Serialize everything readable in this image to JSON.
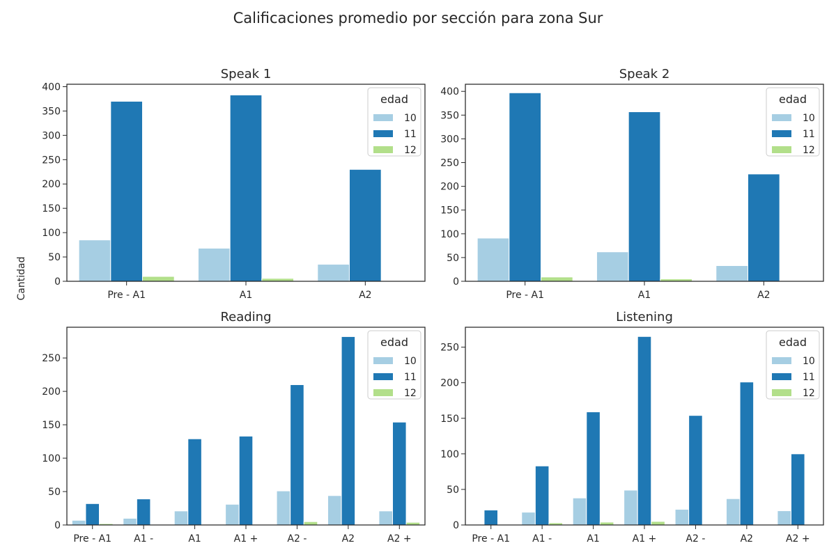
{
  "figure": {
    "title": "Calificaciones promedio por sección para zona Sur",
    "ylabel": "Cantidad"
  },
  "colors": {
    "10": "#a6cee3",
    "11": "#1f78b4",
    "12": "#b2df8a"
  },
  "chart_data": [
    {
      "type": "bar",
      "title": "Speak 1",
      "xlabel": "",
      "ylabel": "Cantidad",
      "categories": [
        "Pre - A1",
        "A1",
        "A2"
      ],
      "series": [
        {
          "name": "10",
          "values": [
            85,
            68,
            35
          ]
        },
        {
          "name": "11",
          "values": [
            370,
            383,
            230
          ]
        },
        {
          "name": "12",
          "values": [
            10,
            6,
            0
          ]
        }
      ],
      "ylim": [
        0,
        405
      ],
      "yticks": [
        0,
        50,
        100,
        150,
        200,
        250,
        300,
        350,
        400
      ],
      "legend": {
        "title": "edad",
        "placement": "top-right",
        "entries": [
          "10",
          "11",
          "12"
        ]
      }
    },
    {
      "type": "bar",
      "title": "Speak 2",
      "xlabel": "",
      "ylabel": "",
      "categories": [
        "Pre - A1",
        "A1",
        "A2"
      ],
      "series": [
        {
          "name": "10",
          "values": [
            91,
            62,
            33
          ]
        },
        {
          "name": "11",
          "values": [
            397,
            357,
            226
          ]
        },
        {
          "name": "12",
          "values": [
            9,
            5,
            0
          ]
        }
      ],
      "ylim": [
        0,
        415
      ],
      "yticks": [
        0,
        50,
        100,
        150,
        200,
        250,
        300,
        350,
        400
      ],
      "legend": {
        "title": "edad",
        "placement": "top-right",
        "entries": [
          "10",
          "11",
          "12"
        ]
      }
    },
    {
      "type": "bar",
      "title": "Reading",
      "xlabel": "",
      "ylabel": "",
      "categories": [
        "Pre - A1",
        "A1 -",
        "A1",
        "A1 +",
        "A2 -",
        "A2",
        "A2 +"
      ],
      "series": [
        {
          "name": "10",
          "values": [
            7,
            10,
            21,
            31,
            51,
            44,
            21
          ]
        },
        {
          "name": "11",
          "values": [
            32,
            39,
            129,
            133,
            210,
            282,
            154
          ]
        },
        {
          "name": "12",
          "values": [
            2,
            0,
            0,
            0,
            5,
            0,
            4
          ]
        }
      ],
      "ylim": [
        0,
        296
      ],
      "yticks": [
        0,
        50,
        100,
        150,
        200,
        250
      ],
      "legend": {
        "title": "edad",
        "placement": "top-right",
        "entries": [
          "10",
          "11",
          "12"
        ]
      }
    },
    {
      "type": "bar",
      "title": "Listening",
      "xlabel": "",
      "ylabel": "",
      "categories": [
        "Pre - A1",
        "A1 -",
        "A1",
        "A1 +",
        "A2 -",
        "A2",
        "A2 +"
      ],
      "series": [
        {
          "name": "10",
          "values": [
            0,
            18,
            38,
            49,
            22,
            37,
            20
          ]
        },
        {
          "name": "11",
          "values": [
            21,
            83,
            159,
            265,
            154,
            201,
            100
          ]
        },
        {
          "name": "12",
          "values": [
            0,
            3,
            4,
            5,
            0,
            0,
            0
          ]
        }
      ],
      "ylim": [
        0,
        278
      ],
      "yticks": [
        0,
        50,
        100,
        150,
        200,
        250
      ],
      "legend": {
        "title": "edad",
        "placement": "top-right",
        "entries": [
          "10",
          "11",
          "12"
        ]
      }
    }
  ]
}
